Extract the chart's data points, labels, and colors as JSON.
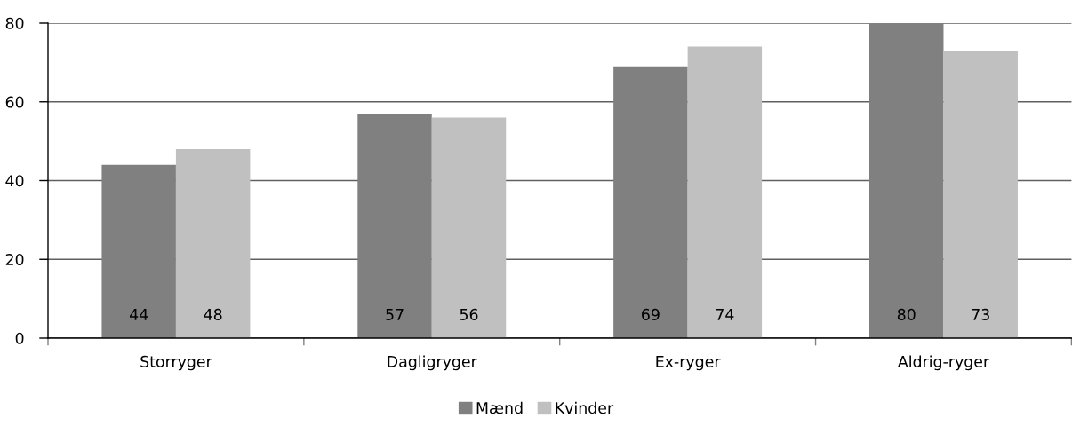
{
  "chart_data": {
    "type": "bar",
    "categories": [
      "Storryger",
      "Dagligryger",
      "Ex-ryger",
      "Aldrig-ryger"
    ],
    "series": [
      {
        "name": "Mænd",
        "color": "#808080",
        "values": [
          44,
          57,
          69,
          80
        ]
      },
      {
        "name": "Kvinder",
        "color": "#c0c0c0",
        "values": [
          48,
          56,
          74,
          73
        ]
      }
    ],
    "ylim": [
      0,
      80
    ],
    "yticks": [
      0,
      20,
      40,
      60,
      80
    ],
    "grid": "y",
    "legend": "bottom",
    "data_labels": true
  }
}
